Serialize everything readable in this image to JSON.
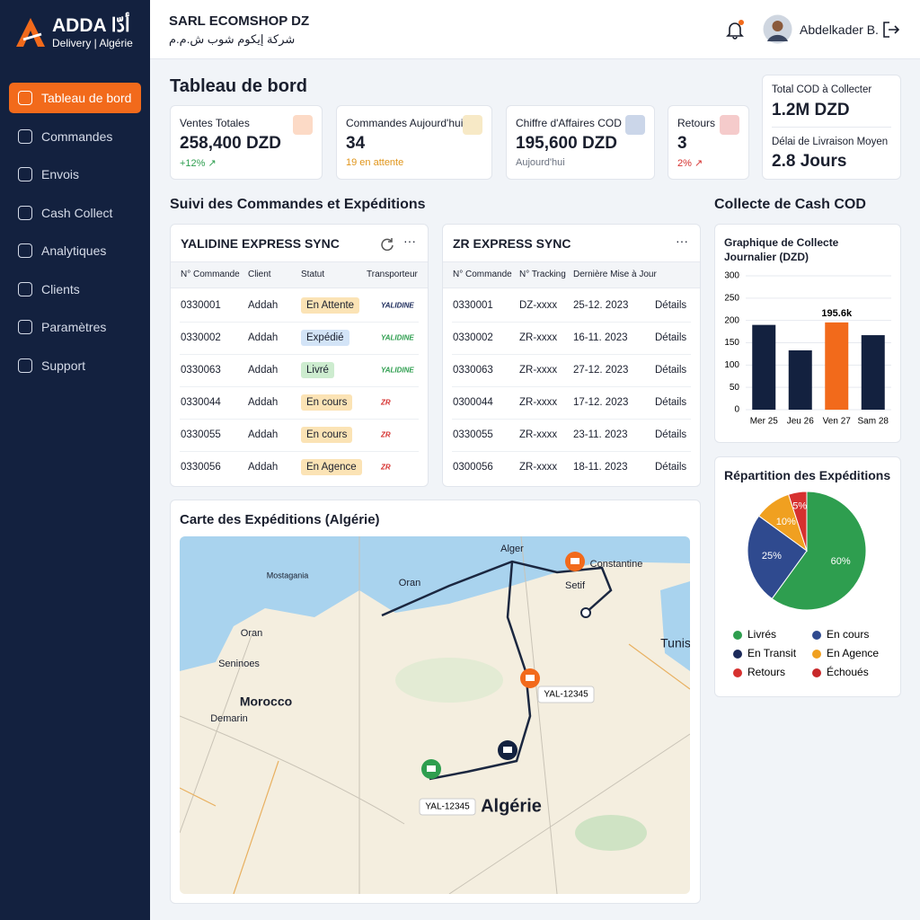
{
  "sidebar": {
    "brand": "ADDA",
    "brand_arabic": "أدّا",
    "brand_sub": "Delivery | Algérie",
    "menu": [
      "Tableau de bord",
      "Commandes",
      "Envois",
      "Cash Collect",
      "Analytiques",
      "Clients",
      "Paramètres",
      "Support"
    ]
  },
  "header": {
    "company": "SARL ECOMSHOP DZ",
    "company_arabic": "شركة إيكوم شوب ش.م.م",
    "user": "Abdelkader B."
  },
  "page_title": "Tableau de bord",
  "kpis": [
    {
      "label": "Ventes Totales",
      "value": "258,400 DZD",
      "note": "+12% ↗",
      "note_color": "#2e9e4f",
      "icon_color": "#f26a1b"
    },
    {
      "label": "Commandes Aujourd'hui",
      "value": "34",
      "note": "19 en attente",
      "note_color": "#e0951a",
      "icon_color": "#e0a81a"
    },
    {
      "label": "Chiffre d'Affaires COD",
      "value": "195,600 DZD",
      "note": "Aujourd'hui",
      "note_color": "#6b7280",
      "icon_color": "#2f5aa8"
    },
    {
      "label": "Retours",
      "value": "3",
      "note": "2% ↗",
      "note_color": "#d6312f",
      "icon_color": "#d6312f"
    }
  ],
  "summary": [
    {
      "label": "Total COD à Collecter",
      "value": "1.2M DZD"
    },
    {
      "label": "Délai de Livraison Moyen",
      "value": "2.8 Jours"
    }
  ],
  "orders_section": "Suivi des Commandes et Expéditions",
  "cash_section": "Collecte de Cash COD",
  "yalidine_table": {
    "title": "YALIDINE EXPRESS SYNC",
    "columns": [
      "N° Commande",
      "Client",
      "Statut",
      "Transporteur"
    ],
    "rows": [
      {
        "order": "0330001",
        "client": "Addah",
        "status": "En Attente",
        "status_color": "#fbe3b5",
        "carrier": "YALIDINE",
        "carrier_color": "#1b2a5a"
      },
      {
        "order": "0330002",
        "client": "Addah",
        "status": "Expédié",
        "status_color": "#d3e4f7",
        "carrier": "YALIDINE",
        "carrier_color": "#2e9e4f"
      },
      {
        "order": "0330063",
        "client": "Addah",
        "status": "Livré",
        "status_color": "#cdeccf",
        "carrier": "YALIDINE",
        "carrier_color": "#2e9e4f"
      },
      {
        "order": "0330044",
        "client": "Addah",
        "status": "En cours",
        "status_color": "#fbe3b5",
        "carrier": "ZR",
        "carrier_color": "#d6312f"
      },
      {
        "order": "0330055",
        "client": "Addah",
        "status": "En cours",
        "status_color": "#fbe3b5",
        "carrier": "ZR",
        "carrier_color": "#d6312f"
      },
      {
        "order": "0330056",
        "client": "Addah",
        "status": "En Agence",
        "status_color": "#fbe3b5",
        "carrier": "ZR",
        "carrier_color": "#d6312f"
      }
    ]
  },
  "zr_table": {
    "title": "ZR EXPRESS SYNC",
    "columns": [
      "N° Commande",
      "N° Tracking",
      "Dernière Mise à Jour"
    ],
    "rows": [
      [
        "0330001",
        "DZ-xxxx",
        "25-12. 2023",
        "Détails"
      ],
      [
        "0330002",
        "ZR-xxxx",
        "16-11. 2023",
        "Détails"
      ],
      [
        "0330063",
        "ZR-xxxx",
        "27-12. 2023",
        "Détails"
      ],
      [
        "0300044",
        "ZR-xxxx",
        "17-12. 2023",
        "Détails"
      ],
      [
        "0330055",
        "ZR-xxxx",
        "23-11. 2023",
        "Détails"
      ],
      [
        "0300056",
        "ZR-xxxx",
        "18-11. 2023",
        "Détails"
      ]
    ]
  },
  "map": {
    "title": "Carte des Expéditions (Algérie)",
    "places": [
      "Alger",
      "Constantine",
      "Oran",
      "Setif",
      "Tunis",
      "Mostagania",
      "Oran",
      "Seninoes",
      "Morocco",
      "Demarin",
      "Algérie"
    ],
    "tags": [
      "YAL-12345",
      "YAL-12345"
    ]
  },
  "chart_data": [
    {
      "type": "bar",
      "title": "Graphique de Collecte Journalier (DZD)",
      "categories": [
        "Mer 25",
        "Jeu 26",
        "Ven 27",
        "Sam 28"
      ],
      "values": [
        190,
        133,
        195.6,
        167
      ],
      "value_labels": [
        null,
        null,
        "195.6k",
        null
      ],
      "colors": [
        "#13213f",
        "#13213f",
        "#f26a1b",
        "#13213f"
      ],
      "ylim": [
        0,
        300
      ],
      "yticks": [
        0,
        50,
        100,
        150,
        200,
        250,
        300
      ],
      "grid": true
    },
    {
      "type": "pie",
      "title": "Répartition des Expéditions",
      "values": [
        60,
        25,
        10,
        5
      ],
      "value_labels": [
        "60%",
        "25%",
        "10%",
        "5%"
      ],
      "colors": [
        "#2e9e4f",
        "#2f4a8f",
        "#f0a020",
        "#d6312f"
      ],
      "legend": [
        {
          "label": "Livrés",
          "color": "#2e9e4f"
        },
        {
          "label": "En cours",
          "color": "#2f4a8f"
        },
        {
          "label": "En Transit",
          "color": "#1b2a5a"
        },
        {
          "label": "En Agence",
          "color": "#f0a020"
        },
        {
          "label": "Retours",
          "color": "#d6312f"
        },
        {
          "label": "Échoués",
          "color": "#c8282a"
        }
      ]
    }
  ]
}
